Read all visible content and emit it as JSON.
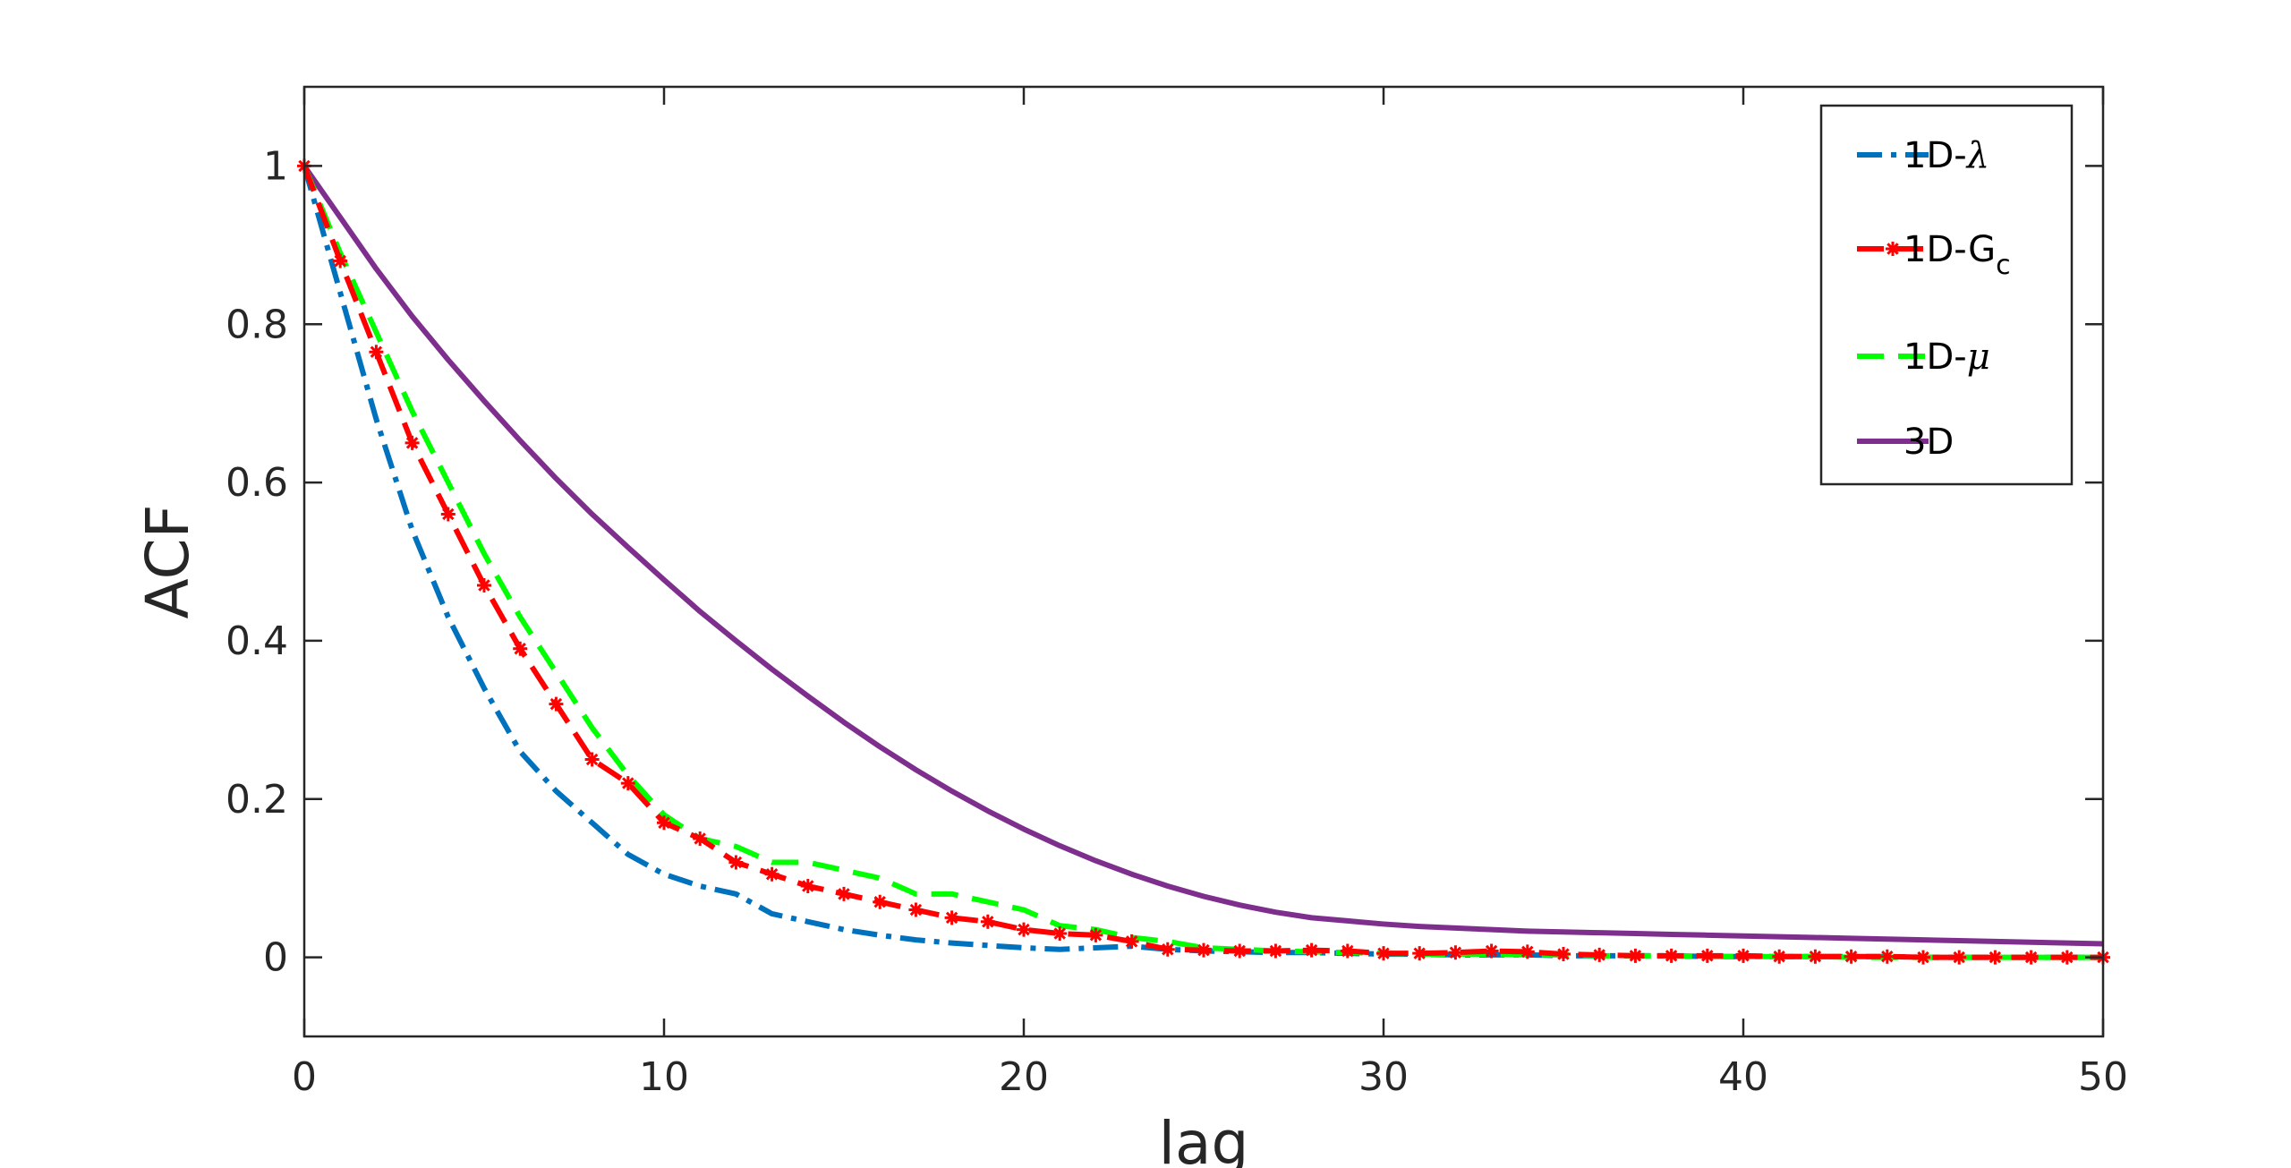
{
  "chart_data": {
    "type": "line",
    "title": "",
    "xlabel": "lag",
    "ylabel": "ACF",
    "xlim": [
      0,
      50
    ],
    "ylim": [
      -0.1,
      1.1
    ],
    "xticks": [
      0,
      10,
      20,
      30,
      40,
      50
    ],
    "xtick_labels": [
      "0",
      "10",
      "20",
      "30",
      "40",
      "50"
    ],
    "yticks": [
      0,
      0.2,
      0.4,
      0.6,
      0.8,
      1
    ],
    "ytick_labels": [
      "0",
      "0.2",
      "0.4",
      "0.6",
      "0.8",
      "1"
    ],
    "grid": false,
    "legend_position": "top-right",
    "series": [
      {
        "name": "1D-λ",
        "label_main": "1D-",
        "label_sym": "λ",
        "color": "#0072BD",
        "style": "dashdot",
        "x": [
          0,
          1,
          2,
          3,
          4,
          5,
          6,
          7,
          8,
          9,
          10,
          11,
          12,
          13,
          14,
          15,
          16,
          17,
          18,
          19,
          20,
          21,
          22,
          23,
          24,
          25,
          26,
          27,
          28,
          29,
          30,
          31,
          32,
          33,
          34,
          35,
          36,
          37,
          38,
          39,
          40,
          41,
          42,
          43,
          44,
          45,
          46,
          47,
          48,
          49,
          50
        ],
        "values": [
          1.0,
          0.84,
          0.68,
          0.54,
          0.43,
          0.34,
          0.26,
          0.21,
          0.17,
          0.13,
          0.105,
          0.09,
          0.08,
          0.055,
          0.045,
          0.035,
          0.028,
          0.022,
          0.018,
          0.015,
          0.012,
          0.01,
          0.012,
          0.014,
          0.01,
          0.008,
          0.007,
          0.006,
          0.006,
          0.005,
          0.004,
          0.004,
          0.003,
          0.003,
          0.003,
          0.002,
          0.002,
          0.002,
          0.002,
          0.001,
          0.001,
          0.001,
          0.001,
          0.001,
          0.001,
          0.0,
          0.0,
          0.0,
          0.0,
          0.0,
          0.0
        ]
      },
      {
        "name": "1D-Gc",
        "label_main": "1D-G",
        "label_sub": "c",
        "color": "#FF0000",
        "style": "dashed-star",
        "x": [
          0,
          1,
          2,
          3,
          4,
          5,
          6,
          7,
          8,
          9,
          10,
          11,
          12,
          13,
          14,
          15,
          16,
          17,
          18,
          19,
          20,
          21,
          22,
          23,
          24,
          25,
          26,
          27,
          28,
          29,
          30,
          31,
          32,
          33,
          34,
          35,
          36,
          37,
          38,
          39,
          40,
          41,
          42,
          43,
          44,
          45,
          46,
          47,
          48,
          49,
          50
        ],
        "values": [
          1.0,
          0.88,
          0.765,
          0.65,
          0.56,
          0.47,
          0.39,
          0.32,
          0.25,
          0.22,
          0.17,
          0.15,
          0.12,
          0.105,
          0.09,
          0.08,
          0.07,
          0.06,
          0.05,
          0.045,
          0.035,
          0.03,
          0.028,
          0.02,
          0.01,
          0.009,
          0.008,
          0.008,
          0.009,
          0.008,
          0.005,
          0.005,
          0.006,
          0.008,
          0.007,
          0.004,
          0.003,
          0.002,
          0.002,
          0.002,
          0.002,
          0.001,
          0.001,
          0.001,
          0.001,
          0.0,
          0.0,
          0.0,
          0.0,
          0.0,
          0.0
        ]
      },
      {
        "name": "1D-μ",
        "label_main": "1D-",
        "label_sym": "μ",
        "color": "#00FF00",
        "style": "dashed",
        "x": [
          0,
          1,
          2,
          3,
          4,
          5,
          6,
          7,
          8,
          9,
          10,
          11,
          12,
          13,
          14,
          15,
          16,
          17,
          18,
          19,
          20,
          21,
          22,
          23,
          24,
          25,
          26,
          27,
          28,
          29,
          30,
          31,
          32,
          33,
          34,
          35,
          36,
          37,
          38,
          39,
          40,
          41,
          42,
          43,
          44,
          45,
          46,
          47,
          48,
          49,
          50
        ],
        "values": [
          1.0,
          0.89,
          0.79,
          0.69,
          0.6,
          0.51,
          0.43,
          0.36,
          0.29,
          0.23,
          0.18,
          0.15,
          0.14,
          0.12,
          0.12,
          0.11,
          0.1,
          0.08,
          0.08,
          0.07,
          0.06,
          0.04,
          0.035,
          0.025,
          0.02,
          0.012,
          0.01,
          0.008,
          0.007,
          0.006,
          0.005,
          0.004,
          0.004,
          0.004,
          0.003,
          0.003,
          0.002,
          0.002,
          0.002,
          0.001,
          0.001,
          0.001,
          0.001,
          0.0,
          0.0,
          0.0,
          0.0,
          0.0,
          0.0,
          0.0,
          0.0
        ]
      },
      {
        "name": "3D",
        "label_main": "3D",
        "color": "#7E2F8E",
        "style": "solid",
        "x": [
          0,
          1,
          2,
          3,
          4,
          5,
          6,
          7,
          8,
          9,
          10,
          11,
          12,
          13,
          14,
          15,
          16,
          17,
          18,
          19,
          20,
          21,
          22,
          23,
          24,
          25,
          26,
          27,
          28,
          29,
          30,
          31,
          32,
          33,
          34,
          35,
          36,
          37,
          38,
          39,
          40,
          41,
          42,
          43,
          44,
          45,
          46,
          47,
          48,
          49,
          50
        ],
        "values": [
          1.0,
          0.935,
          0.87,
          0.81,
          0.755,
          0.703,
          0.653,
          0.605,
          0.56,
          0.518,
          0.477,
          0.437,
          0.4,
          0.364,
          0.33,
          0.297,
          0.266,
          0.237,
          0.21,
          0.185,
          0.162,
          0.141,
          0.122,
          0.105,
          0.09,
          0.077,
          0.066,
          0.057,
          0.05,
          0.046,
          0.042,
          0.039,
          0.037,
          0.035,
          0.033,
          0.032,
          0.031,
          0.03,
          0.029,
          0.028,
          0.027,
          0.026,
          0.025,
          0.024,
          0.023,
          0.022,
          0.021,
          0.02,
          0.019,
          0.018,
          0.017
        ]
      }
    ]
  }
}
